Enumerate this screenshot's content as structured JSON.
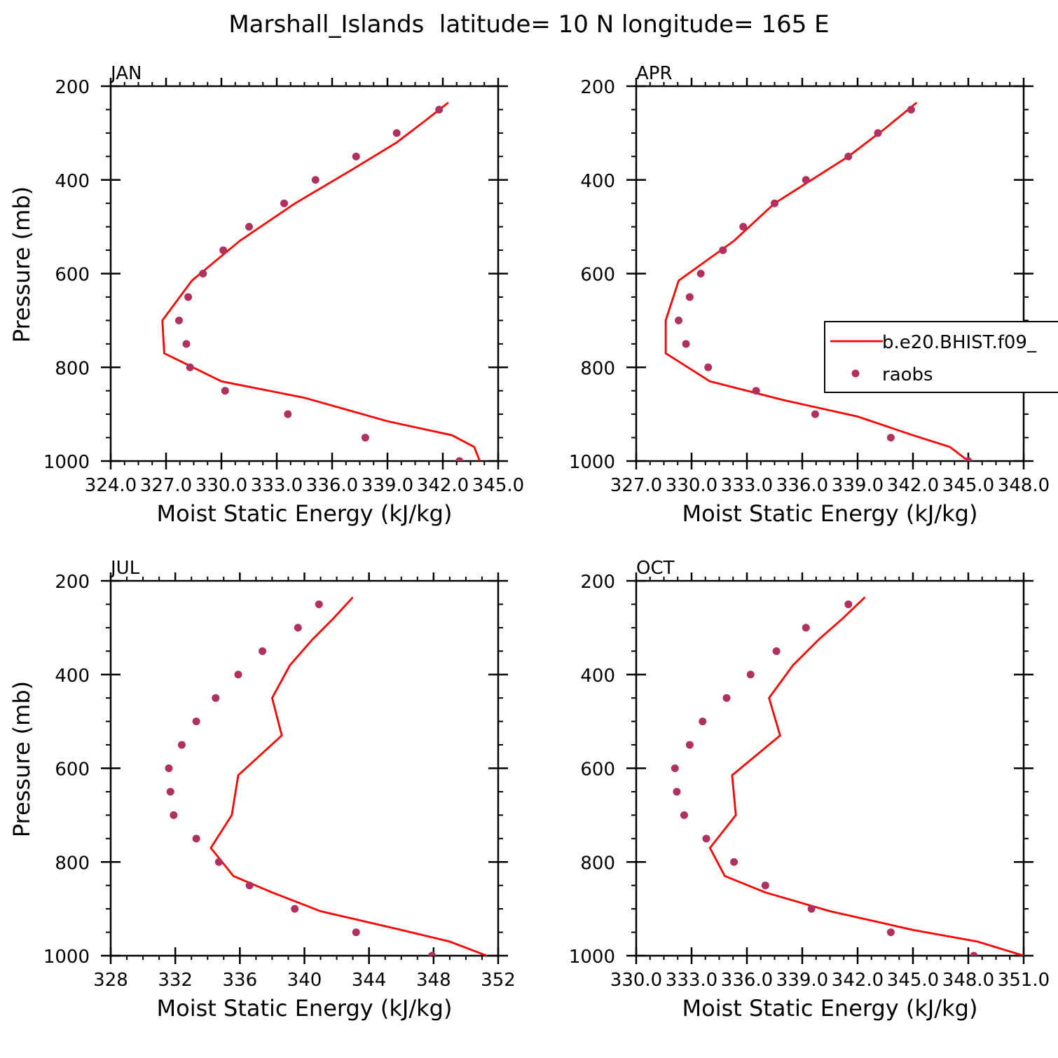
{
  "figure": {
    "title": "Marshall_Islands  latitude= 10 N longitude= 165 E"
  },
  "legend": {
    "items": [
      {
        "label": "b.e20.BHIST.f09_",
        "kind": "line"
      },
      {
        "label": "raobs",
        "kind": "marker"
      }
    ]
  },
  "colors": {
    "model_line": "#ff0000",
    "raobs_marker": "#b0305f",
    "axes": "#000000"
  },
  "chart_data": [
    {
      "type": "line",
      "panel_label": "JAN",
      "xlabel": "Moist Static Energy (kJ/kg)",
      "ylabel": "Pressure (mb)",
      "xlim": [
        324,
        345
      ],
      "ylim": [
        1000,
        200
      ],
      "x_ticks": [
        324,
        327,
        330,
        333,
        336,
        339,
        342,
        345
      ],
      "x_tick_labels": [
        "324.0",
        "327.0",
        "330.0",
        "333.0",
        "336.0",
        "339.0",
        "342.0",
        "345.0"
      ],
      "y_ticks": [
        200,
        400,
        600,
        800,
        1000
      ],
      "y_tick_labels": [
        "200",
        "400",
        "600",
        "800",
        "1000"
      ],
      "series": [
        {
          "name": "b.e20.BHIST.f09_",
          "style": "line",
          "points": [
            [
              342.3,
              235
            ],
            [
              341.0,
              275
            ],
            [
              339.5,
              320
            ],
            [
              337.0,
              380
            ],
            [
              334.0,
              450
            ],
            [
              331.0,
              530
            ],
            [
              328.4,
              615
            ],
            [
              326.8,
              700
            ],
            [
              326.9,
              770
            ],
            [
              330.0,
              830
            ],
            [
              334.5,
              865
            ],
            [
              339.0,
              915
            ],
            [
              342.5,
              945
            ],
            [
              343.7,
              970
            ],
            [
              344.0,
              1000
            ]
          ]
        },
        {
          "name": "raobs",
          "style": "marker",
          "points": [
            [
              341.8,
              250
            ],
            [
              339.5,
              300
            ],
            [
              337.3,
              350
            ],
            [
              335.1,
              400
            ],
            [
              333.4,
              450
            ],
            [
              331.5,
              500
            ],
            [
              330.1,
              550
            ],
            [
              329.0,
              600
            ],
            [
              328.2,
              650
            ],
            [
              327.7,
              700
            ],
            [
              328.1,
              750
            ],
            [
              328.3,
              800
            ],
            [
              330.2,
              850
            ],
            [
              333.6,
              900
            ],
            [
              337.8,
              950
            ],
            [
              342.9,
              1000
            ]
          ]
        }
      ]
    },
    {
      "type": "line",
      "panel_label": "APR",
      "xlabel": "Moist Static Energy (kJ/kg)",
      "ylabel": "",
      "xlim": [
        327,
        348
      ],
      "ylim": [
        1000,
        200
      ],
      "x_ticks": [
        327,
        330,
        333,
        336,
        339,
        342,
        345,
        348
      ],
      "x_tick_labels": [
        "327.0",
        "330.0",
        "333.0",
        "336.0",
        "339.0",
        "342.0",
        "345.0",
        "348.0"
      ],
      "y_ticks": [
        200,
        400,
        600,
        800,
        1000
      ],
      "y_tick_labels": [
        "200",
        "400",
        "600",
        "800",
        "1000"
      ],
      "series": [
        {
          "name": "b.e20.BHIST.f09_",
          "style": "line",
          "points": [
            [
              342.2,
              235
            ],
            [
              340.5,
              290
            ],
            [
              338.5,
              350
            ],
            [
              336.5,
              400
            ],
            [
              334.5,
              450
            ],
            [
              332.3,
              530
            ],
            [
              329.3,
              615
            ],
            [
              328.6,
              700
            ],
            [
              328.6,
              770
            ],
            [
              331.0,
              830
            ],
            [
              335.0,
              870
            ],
            [
              339.0,
              905
            ],
            [
              342.0,
              945
            ],
            [
              344.0,
              970
            ],
            [
              345.0,
              1000
            ]
          ]
        },
        {
          "name": "raobs",
          "style": "marker",
          "points": [
            [
              341.9,
              250
            ],
            [
              340.1,
              300
            ],
            [
              338.5,
              350
            ],
            [
              336.2,
              400
            ],
            [
              334.5,
              450
            ],
            [
              332.8,
              500
            ],
            [
              331.7,
              550
            ],
            [
              330.5,
              600
            ],
            [
              329.9,
              650
            ],
            [
              329.3,
              700
            ],
            [
              329.7,
              750
            ],
            [
              330.9,
              800
            ],
            [
              333.5,
              850
            ],
            [
              336.7,
              900
            ],
            [
              340.8,
              950
            ],
            [
              345.0,
              1000
            ]
          ]
        }
      ]
    },
    {
      "type": "line",
      "panel_label": "JUL",
      "xlabel": "Moist Static Energy (kJ/kg)",
      "ylabel": "Pressure (mb)",
      "xlim": [
        328,
        352
      ],
      "ylim": [
        1000,
        200
      ],
      "x_ticks": [
        328,
        332,
        336,
        340,
        344,
        348,
        352
      ],
      "x_tick_labels": [
        "328",
        "332",
        "336",
        "340",
        "344",
        "348",
        "352"
      ],
      "y_ticks": [
        200,
        400,
        600,
        800,
        1000
      ],
      "y_tick_labels": [
        "200",
        "400",
        "600",
        "800",
        "1000"
      ],
      "series": [
        {
          "name": "b.e20.BHIST.f09_",
          "style": "line",
          "points": [
            [
              343.0,
              235
            ],
            [
              341.8,
              280
            ],
            [
              340.5,
              325
            ],
            [
              339.1,
              380
            ],
            [
              338.0,
              450
            ],
            [
              338.6,
              530
            ],
            [
              335.9,
              615
            ],
            [
              335.5,
              700
            ],
            [
              334.2,
              770
            ],
            [
              335.6,
              830
            ],
            [
              338.0,
              865
            ],
            [
              341.0,
              905
            ],
            [
              346.0,
              945
            ],
            [
              349.0,
              970
            ],
            [
              351.3,
              1000
            ]
          ]
        },
        {
          "name": "raobs",
          "style": "marker",
          "points": [
            [
              340.9,
              250
            ],
            [
              339.6,
              300
            ],
            [
              337.4,
              350
            ],
            [
              335.9,
              400
            ],
            [
              334.5,
              450
            ],
            [
              333.3,
              500
            ],
            [
              332.4,
              550
            ],
            [
              331.6,
              600
            ],
            [
              331.7,
              650
            ],
            [
              331.9,
              700
            ],
            [
              333.3,
              750
            ],
            [
              334.7,
              800
            ],
            [
              336.6,
              850
            ],
            [
              339.4,
              900
            ],
            [
              343.2,
              950
            ],
            [
              347.9,
              1000
            ]
          ]
        }
      ]
    },
    {
      "type": "line",
      "panel_label": "OCT",
      "xlabel": "Moist Static Energy (kJ/kg)",
      "ylabel": "",
      "xlim": [
        330,
        351
      ],
      "ylim": [
        1000,
        200
      ],
      "x_ticks": [
        330,
        333,
        336,
        339,
        342,
        345,
        348,
        351
      ],
      "x_tick_labels": [
        "330.0",
        "333.0",
        "336.0",
        "339.0",
        "342.0",
        "345.0",
        "348.0",
        "351.0"
      ],
      "y_ticks": [
        200,
        400,
        600,
        800,
        1000
      ],
      "y_tick_labels": [
        "200",
        "400",
        "600",
        "800",
        "1000"
      ],
      "series": [
        {
          "name": "b.e20.BHIST.f09_",
          "style": "line",
          "points": [
            [
              342.4,
              235
            ],
            [
              341.2,
              280
            ],
            [
              339.9,
              325
            ],
            [
              338.5,
              380
            ],
            [
              337.2,
              450
            ],
            [
              337.8,
              530
            ],
            [
              335.2,
              615
            ],
            [
              335.4,
              700
            ],
            [
              334.0,
              770
            ],
            [
              334.8,
              830
            ],
            [
              337.0,
              865
            ],
            [
              340.5,
              905
            ],
            [
              345.0,
              945
            ],
            [
              348.5,
              970
            ],
            [
              351.0,
              1000
            ]
          ]
        },
        {
          "name": "raobs",
          "style": "marker",
          "points": [
            [
              341.5,
              250
            ],
            [
              339.2,
              300
            ],
            [
              337.6,
              350
            ],
            [
              336.2,
              400
            ],
            [
              334.9,
              450
            ],
            [
              333.6,
              500
            ],
            [
              332.9,
              550
            ],
            [
              332.1,
              600
            ],
            [
              332.2,
              650
            ],
            [
              332.6,
              700
            ],
            [
              333.8,
              750
            ],
            [
              335.3,
              800
            ],
            [
              337.0,
              850
            ],
            [
              339.5,
              900
            ],
            [
              343.8,
              950
            ],
            [
              348.3,
              1000
            ]
          ]
        }
      ]
    }
  ]
}
